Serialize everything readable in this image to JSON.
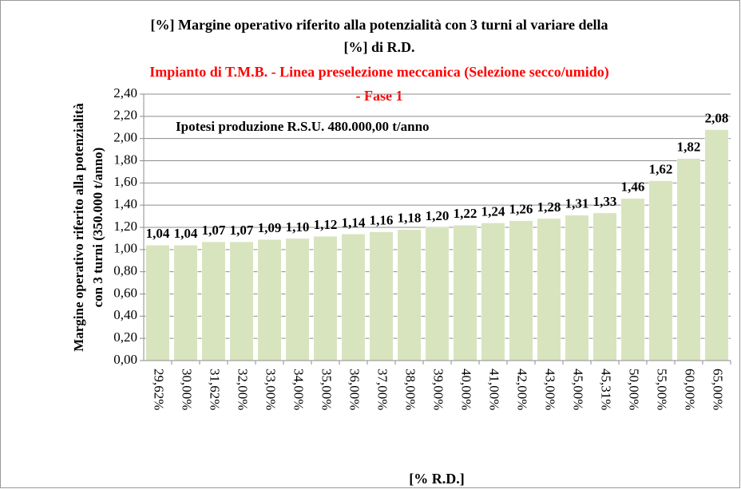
{
  "chart_data": {
    "type": "bar",
    "title": [
      "[%] Margine operativo riferito alla potenzialità con 3 turni al variare della",
      "[%] di R.D."
    ],
    "subtitle": [
      "Impianto di T.M.B. - Linea preselezione meccanica (Selezione secco/umido)",
      "- Fase 1"
    ],
    "annotation": "Ipotesi produzione R.S.U. 480.000,00 t/anno",
    "y_label": [
      "Margine operativo riferito alla potenzialità",
      "con 3 turni (350.000 t/anno)"
    ],
    "x_label": "[% R.D.]",
    "categories": [
      "29,62%",
      "30,00%",
      "31,62%",
      "32,00%",
      "33,00%",
      "34,00%",
      "35,00%",
      "36,00%",
      "37,00%",
      "38,00%",
      "39,00%",
      "40,00%",
      "41,00%",
      "42,00%",
      "43,00%",
      "45,00%",
      "45,31%",
      "50,00%",
      "55,00%",
      "60,00%",
      "65,00%"
    ],
    "values": [
      1.04,
      1.04,
      1.07,
      1.07,
      1.09,
      1.1,
      1.12,
      1.14,
      1.16,
      1.18,
      1.2,
      1.22,
      1.24,
      1.26,
      1.28,
      1.31,
      1.33,
      1.46,
      1.62,
      1.82,
      2.08
    ],
    "value_labels": [
      "1,04",
      "1,04",
      "1,07",
      "1,07",
      "1,09",
      "1,10",
      "1,12",
      "1,14",
      "1,16",
      "1,18",
      "1,20",
      "1,22",
      "1,24",
      "1,26",
      "1,28",
      "1,31",
      "1,33",
      "1,46",
      "1,62",
      "1,82",
      "2,08"
    ],
    "color": "#d7e4bd",
    "ylim": [
      0,
      2.4
    ],
    "yticks": [
      {
        "value": 0,
        "label": "0,00"
      },
      {
        "value": 0.2,
        "label": "0,20"
      },
      {
        "value": 0.4,
        "label": "0,40"
      },
      {
        "value": 0.6,
        "label": "0,60"
      },
      {
        "value": 0.8,
        "label": "0,80"
      },
      {
        "value": 1,
        "label": "1,00"
      },
      {
        "value": 1.2,
        "label": "1,20"
      },
      {
        "value": 1.4,
        "label": "1,40"
      },
      {
        "value": 1.6,
        "label": "1,60"
      },
      {
        "value": 1.8,
        "label": "1,80"
      },
      {
        "value": 2,
        "label": "2,00"
      },
      {
        "value": 2.2,
        "label": "2,20"
      },
      {
        "value": 2.4,
        "label": "2,40"
      }
    ],
    "grid": true
  }
}
